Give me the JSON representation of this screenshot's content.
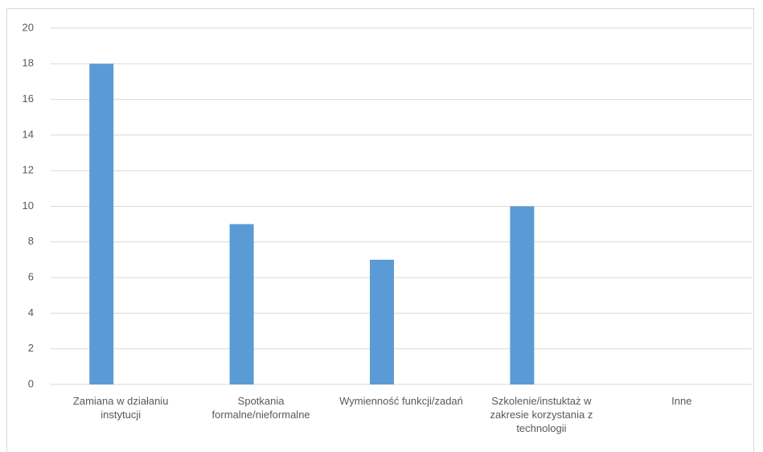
{
  "chart_data": {
    "type": "bar",
    "categories": [
      "Zamiana w działaniu instytucji",
      "Spotkania formalne/nieformalne",
      "Wymienność funkcji/zadań",
      "Szkolenie/instuktaż w zakresie korzystania z technologii",
      "Inne"
    ],
    "values": [
      18,
      9,
      7,
      10,
      0
    ],
    "color": "#5b9bd5",
    "ylim": [
      0,
      20
    ],
    "yticks": [
      0,
      2,
      4,
      6,
      8,
      10,
      12,
      14,
      16,
      18,
      20
    ],
    "grid": true
  }
}
